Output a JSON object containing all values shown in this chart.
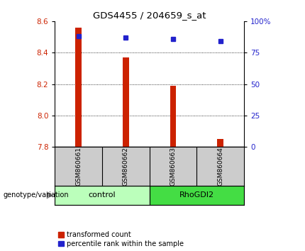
{
  "title": "GDS4455 / 204659_s_at",
  "samples": [
    "GSM860661",
    "GSM860662",
    "GSM860663",
    "GSM860664"
  ],
  "x_positions": [
    1,
    2,
    3,
    4
  ],
  "bar_base": 7.8,
  "bar_tops": [
    8.56,
    8.37,
    8.19,
    7.85
  ],
  "percentile_values": [
    88,
    87,
    86,
    84
  ],
  "groups": [
    {
      "label": "control",
      "x_start": 0.5,
      "x_end": 2.5,
      "color": "#bbffbb"
    },
    {
      "label": "RhoGDI2",
      "x_start": 2.5,
      "x_end": 4.5,
      "color": "#44dd44"
    }
  ],
  "ylim_left": [
    7.8,
    8.6
  ],
  "ylim_right": [
    0,
    100
  ],
  "yticks_left": [
    7.8,
    8.0,
    8.2,
    8.4,
    8.6
  ],
  "yticks_right": [
    0,
    25,
    50,
    75,
    100
  ],
  "ytick_labels_right": [
    "0",
    "25",
    "50",
    "75",
    "100%"
  ],
  "bar_color": "#cc2200",
  "dot_color": "#2222cc",
  "bar_width": 0.13,
  "legend_labels": [
    "transformed count",
    "percentile rank within the sample"
  ],
  "legend_colors": [
    "#cc2200",
    "#2222cc"
  ],
  "bg_color": "#ffffff",
  "grid_color": "#000000",
  "label_color_left": "#cc2200",
  "label_color_right": "#2222cc",
  "genotype_label": "genotype/variation",
  "sample_box_color": "#cccccc",
  "xlim": [
    0.5,
    4.5
  ]
}
